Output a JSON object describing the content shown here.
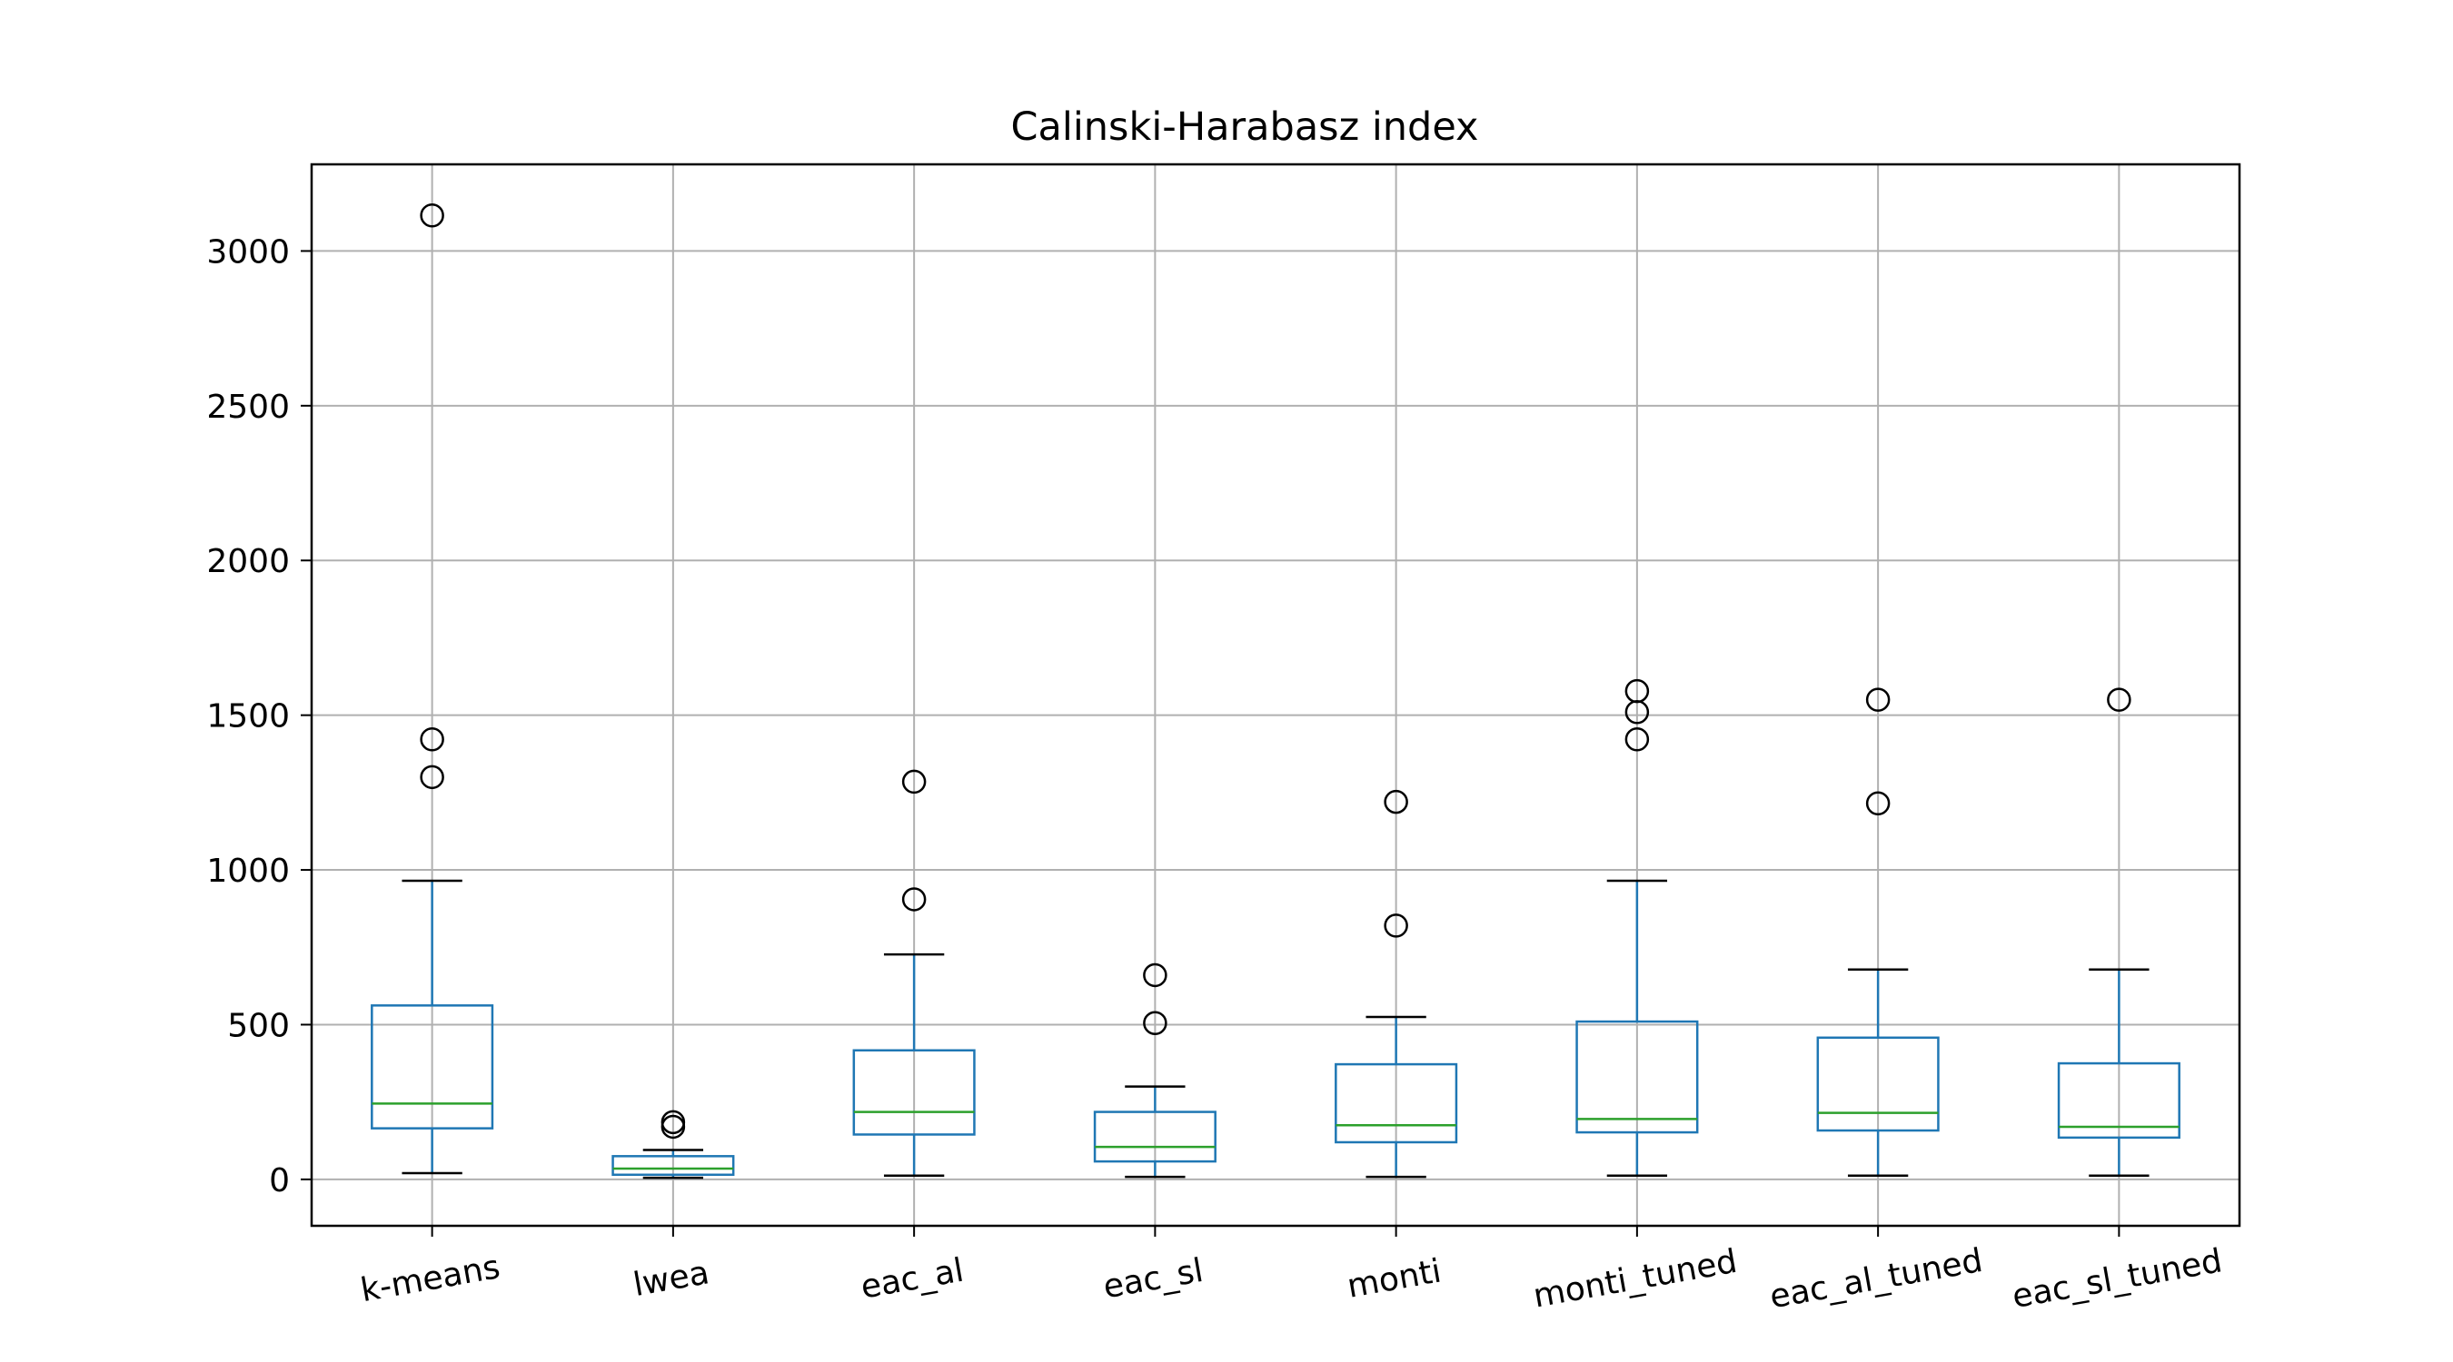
{
  "chart_data": {
    "type": "box",
    "title": "Calinski-Harabasz index",
    "xlabel": "",
    "ylabel": "",
    "ylim": [
      -150,
      3280
    ],
    "yticks": [
      0,
      500,
      1000,
      1500,
      2000,
      2500,
      3000
    ],
    "grid": true,
    "colors": {
      "box": "#1f77b4",
      "median": "#2ca02c",
      "whisker_cap": "#000000",
      "outlier": "#000000",
      "grid": "#b0b0b0"
    },
    "categories": [
      "k-means",
      "lwea",
      "eac_al",
      "eac_sl",
      "monti",
      "monti_tuned",
      "eac_al_tuned",
      "eac_sl_tuned"
    ],
    "boxes": [
      {
        "name": "k-means",
        "whislo": 20,
        "q1": 165,
        "med": 245,
        "q3": 562,
        "whishi": 965,
        "fliers": [
          1300,
          1422,
          3115
        ]
      },
      {
        "name": "lwea",
        "whislo": 5,
        "q1": 15,
        "med": 35,
        "q3": 75,
        "whishi": 95,
        "fliers": [
          170,
          185
        ]
      },
      {
        "name": "eac_al",
        "whislo": 12,
        "q1": 145,
        "med": 218,
        "q3": 417,
        "whishi": 727,
        "fliers": [
          905,
          1285
        ]
      },
      {
        "name": "eac_sl",
        "whislo": 8,
        "q1": 58,
        "med": 105,
        "q3": 218,
        "whishi": 300,
        "fliers": [
          505,
          660
        ]
      },
      {
        "name": "monti",
        "whislo": 8,
        "q1": 120,
        "med": 175,
        "q3": 372,
        "whishi": 525,
        "fliers": [
          820,
          1220
        ]
      },
      {
        "name": "monti_tuned",
        "whislo": 12,
        "q1": 152,
        "med": 195,
        "q3": 510,
        "whishi": 965,
        "fliers": [
          1422,
          1510,
          1578
        ]
      },
      {
        "name": "eac_al_tuned",
        "whislo": 12,
        "q1": 158,
        "med": 215,
        "q3": 458,
        "whishi": 678,
        "fliers": [
          1215,
          1550
        ]
      },
      {
        "name": "eac_sl_tuned",
        "whislo": 12,
        "q1": 135,
        "med": 170,
        "q3": 375,
        "whishi": 678,
        "fliers": [
          1550
        ]
      }
    ]
  }
}
